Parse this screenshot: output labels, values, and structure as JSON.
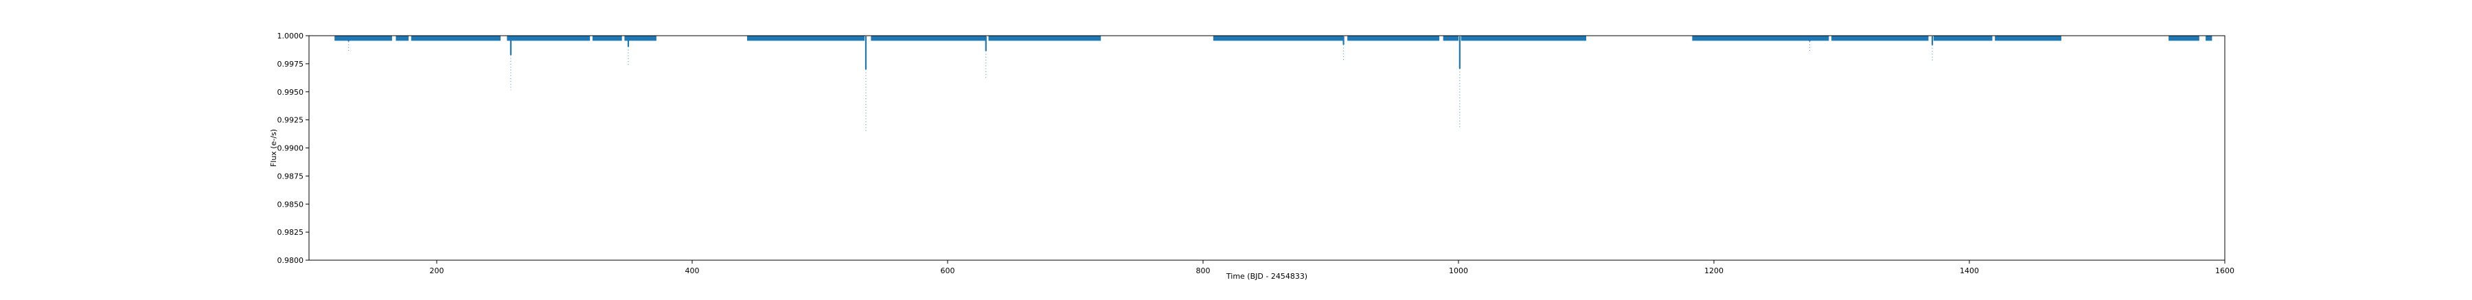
{
  "chart_data": {
    "type": "scatter",
    "title": "",
    "xlabel": "Time (BJD - 2454833)",
    "ylabel": "Flux (e-/s)",
    "xlim": [
      100,
      1600
    ],
    "ylim": [
      0.98,
      1.0
    ],
    "xticks": [
      {
        "value": 200,
        "label": "200"
      },
      {
        "value": 400,
        "label": "400"
      },
      {
        "value": 600,
        "label": "600"
      },
      {
        "value": 800,
        "label": "800"
      },
      {
        "value": 1000,
        "label": "1000"
      },
      {
        "value": 1200,
        "label": "1200"
      },
      {
        "value": 1400,
        "label": "1400"
      },
      {
        "value": 1600,
        "label": "1600"
      }
    ],
    "yticks": [
      {
        "value": 0.98,
        "label": "0.9800"
      },
      {
        "value": 0.9825,
        "label": "0.9825"
      },
      {
        "value": 0.985,
        "label": "0.9850"
      },
      {
        "value": 0.9875,
        "label": "0.9875"
      },
      {
        "value": 0.99,
        "label": "0.9900"
      },
      {
        "value": 0.9925,
        "label": "0.9925"
      },
      {
        "value": 0.995,
        "label": "0.9950"
      },
      {
        "value": 0.9975,
        "label": "0.9975"
      },
      {
        "value": 1.0,
        "label": "1.0000"
      }
    ],
    "grid": false,
    "series_color": "#1f77b4",
    "observing_segments": [
      [
        120,
        165
      ],
      [
        168,
        178
      ],
      [
        180,
        250
      ],
      [
        255,
        320
      ],
      [
        322,
        345
      ],
      [
        347,
        372
      ],
      [
        443,
        535
      ],
      [
        540,
        630
      ],
      [
        632,
        720
      ],
      [
        808,
        910
      ],
      [
        913,
        985
      ],
      [
        988,
        1000
      ],
      [
        1002,
        1100
      ],
      [
        1183,
        1290
      ],
      [
        1292,
        1368
      ],
      [
        1372,
        1418
      ],
      [
        1420,
        1472
      ],
      [
        1556,
        1580
      ],
      [
        1585,
        1590
      ]
    ],
    "segment_baseline": 0.99995,
    "segment_low_edge": 0.99955,
    "transit_dips": [
      {
        "time": 131,
        "depth": 0.99865
      },
      {
        "time": 258,
        "depth": 0.99515
      },
      {
        "time": 350,
        "depth": 0.9973
      },
      {
        "time": 536,
        "depth": 0.9915
      },
      {
        "time": 630,
        "depth": 0.9962
      },
      {
        "time": 910,
        "depth": 0.9978
      },
      {
        "time": 1001,
        "depth": 0.9917
      },
      {
        "time": 1275,
        "depth": 0.99865
      },
      {
        "time": 1371,
        "depth": 0.9977
      }
    ]
  }
}
